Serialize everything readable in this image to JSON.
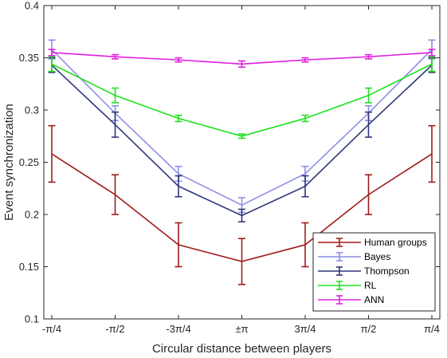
{
  "chart_data": {
    "type": "line",
    "title": "",
    "xlabel": "Circular distance between players",
    "ylabel": "Event synchronization",
    "categories": [
      "-π/4",
      "-π/2",
      "-3π/4",
      "±π",
      "3π/4",
      "π/2",
      "π/4"
    ],
    "ylim": [
      0.1,
      0.4
    ],
    "yticks": [
      "0.1",
      "0.15",
      "0.2",
      "0.25",
      "0.3",
      "0.35",
      "0.4"
    ],
    "grid": false,
    "legend_position": "bottom-right",
    "series": [
      {
        "name": "Human groups",
        "color": "#a01b1b",
        "values": [
          0.258,
          0.219,
          0.171,
          0.155,
          0.171,
          0.219,
          0.258
        ],
        "errors": [
          0.027,
          0.019,
          0.021,
          0.022,
          0.021,
          0.019,
          0.027
        ]
      },
      {
        "name": "Bayes",
        "color": "#8e8ee8",
        "values": [
          0.358,
          0.297,
          0.239,
          0.209,
          0.239,
          0.297,
          0.358
        ],
        "errors": [
          0.009,
          0.007,
          0.007,
          0.007,
          0.007,
          0.007,
          0.009
        ]
      },
      {
        "name": "Thompson",
        "color": "#2e3678",
        "values": [
          0.343,
          0.286,
          0.227,
          0.199,
          0.227,
          0.286,
          0.343
        ],
        "errors": [
          0.007,
          0.012,
          0.01,
          0.006,
          0.01,
          0.012,
          0.007
        ]
      },
      {
        "name": "RL",
        "color": "#1ee01e",
        "values": [
          0.344,
          0.314,
          0.292,
          0.275,
          0.292,
          0.314,
          0.344
        ],
        "errors": [
          0.007,
          0.007,
          0.003,
          0.002,
          0.003,
          0.007,
          0.007
        ]
      },
      {
        "name": "ANN",
        "color": "#e020e0",
        "values": [
          0.355,
          0.351,
          0.348,
          0.344,
          0.348,
          0.351,
          0.355
        ],
        "errors": [
          0.003,
          0.002,
          0.002,
          0.003,
          0.002,
          0.002,
          0.003
        ]
      }
    ]
  }
}
